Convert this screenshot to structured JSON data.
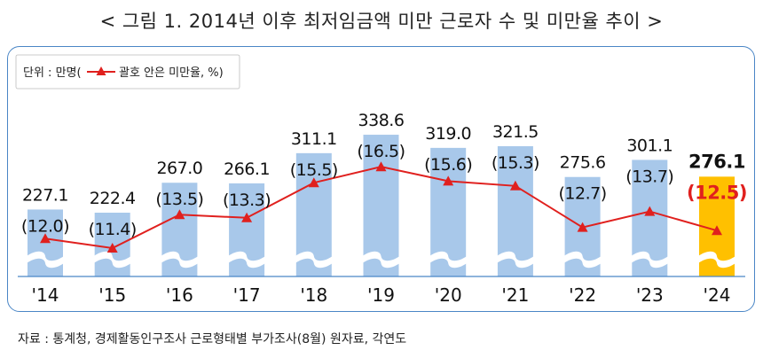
{
  "title": "< 그림 1. 2014년 이후 최저임금액 미만 근로자 수 및 미만율 추이 >",
  "unit_prefix": "단위 : 만명(",
  "unit_suffix": "괄호 안은 미만율, %)",
  "source": "자료 : 통계청, 경제활동인구조사 근로형태별 부가조사(8월) 원자료, 각연도",
  "colors": {
    "bar": "#a8c8ea",
    "bar_highlight": "#ffc000",
    "line": "#e0201e",
    "border": "#4a86c6"
  },
  "chart_data": {
    "type": "bar",
    "categories": [
      "'14",
      "'15",
      "'16",
      "'17",
      "'18",
      "'19",
      "'20",
      "'21",
      "'22",
      "'23",
      "'24"
    ],
    "series": [
      {
        "values": [
          227.1,
          222.4,
          267.0,
          266.1,
          311.1,
          338.6,
          319.0,
          321.5,
          275.6,
          301.1,
          276.1
        ],
        "labels": [
          "227.1",
          "222.4",
          "267.0",
          "266.1",
          "311.1",
          "338.6",
          "319.0",
          "321.5",
          "275.6",
          "301.1",
          "276.1"
        ]
      },
      {
        "type": "line",
        "values": [
          12.0,
          11.4,
          13.5,
          13.3,
          15.5,
          16.5,
          15.6,
          15.3,
          12.7,
          13.7,
          12.5
        ],
        "labels": [
          "(12.0)",
          "(11.4)",
          "(13.5)",
          "(13.3)",
          "(15.5)",
          "(16.5)",
          "(15.6)",
          "(15.3)",
          "(12.7)",
          "(13.7)",
          "(12.5)"
        ]
      }
    ],
    "highlight_index": 10,
    "axis_break": true,
    "legend_position": "top-left"
  }
}
